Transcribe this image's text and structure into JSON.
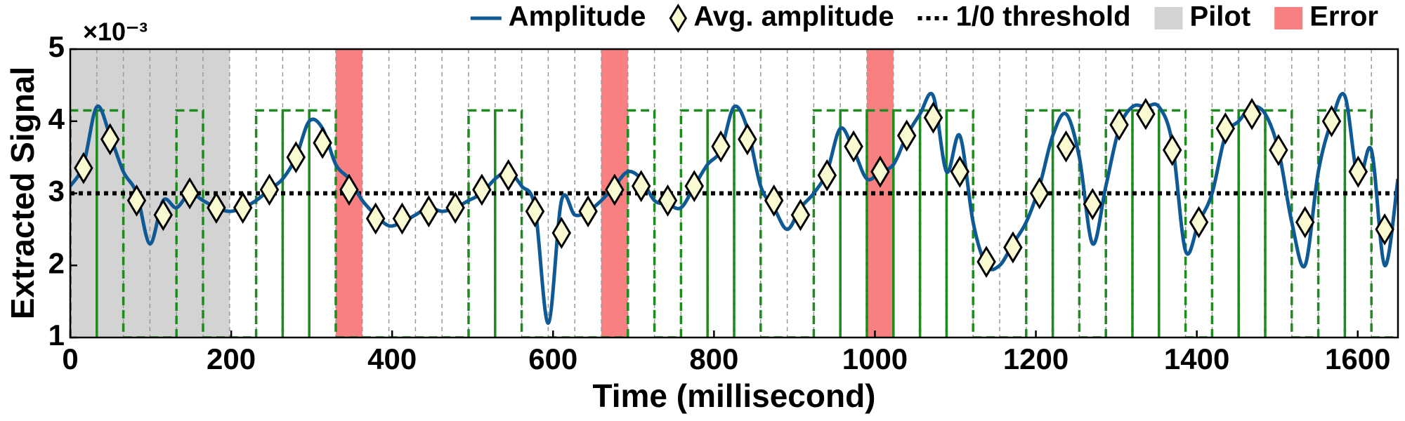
{
  "chart_data": {
    "type": "line",
    "y_label": "Extracted Signal",
    "x_label": "Time (millisecond)",
    "y_scale_label": "×10⁻³",
    "xlim": [
      0,
      1650
    ],
    "ylim": [
      1,
      5
    ],
    "xticks": [
      0,
      200,
      400,
      600,
      800,
      1000,
      1200,
      1400,
      1600
    ],
    "yticks": [
      1,
      2,
      3,
      4,
      5
    ],
    "legend": "upper right",
    "series": [
      {
        "name": "Amplitude",
        "color": "#0f5a94",
        "x": [
          0,
          16.5,
          33,
          49.5,
          66,
          82.5,
          99,
          115.5,
          132,
          148.5,
          165,
          181.5,
          198,
          214.5,
          231,
          247.5,
          264,
          280.5,
          297,
          313.5,
          330,
          346.5,
          363,
          379.5,
          396,
          412.5,
          429,
          445.5,
          462,
          478.5,
          495,
          511.5,
          528,
          544.5,
          561,
          577.5,
          594,
          610.5,
          627,
          643.5,
          660,
          676.5,
          693,
          709.5,
          726,
          742.5,
          759,
          775.5,
          792,
          808.5,
          825,
          841.5,
          858,
          874.5,
          891,
          907.5,
          924,
          940.5,
          957,
          973.5,
          990,
          1006.5,
          1023,
          1039.5,
          1056,
          1072.5,
          1089,
          1105.5,
          1122,
          1138.5,
          1155,
          1171.5,
          1188,
          1204.5,
          1221,
          1237.5,
          1254,
          1270.5,
          1287,
          1303.5,
          1320,
          1336.5,
          1353,
          1369.5,
          1386,
          1402.5,
          1419,
          1435.5,
          1452,
          1468.5,
          1485,
          1501.5,
          1518,
          1534.5,
          1551,
          1567.5,
          1584,
          1600.5,
          1617,
          1633.5,
          1650
        ],
        "values": [
          3.1,
          3.4,
          4.2,
          3.8,
          3.3,
          3.0,
          2.3,
          2.9,
          2.8,
          3.0,
          2.9,
          2.8,
          2.75,
          2.8,
          2.9,
          3.05,
          3.2,
          3.5,
          4.0,
          3.9,
          3.4,
          3.2,
          2.9,
          2.7,
          2.55,
          2.6,
          2.7,
          2.8,
          2.75,
          2.8,
          2.9,
          3.0,
          3.2,
          3.3,
          3.1,
          2.8,
          1.2,
          2.9,
          2.7,
          2.75,
          2.9,
          3.1,
          3.3,
          3.2,
          2.9,
          2.85,
          2.8,
          3.1,
          3.4,
          3.6,
          4.2,
          3.9,
          3.1,
          2.8,
          2.5,
          2.8,
          3.0,
          3.3,
          3.9,
          3.6,
          3.2,
          3.3,
          3.4,
          3.8,
          4.1,
          4.35,
          3.3,
          3.8,
          2.6,
          2.0,
          2.0,
          2.3,
          2.6,
          3.1,
          3.8,
          4.1,
          3.5,
          2.3,
          3.1,
          3.9,
          4.2,
          4.2,
          4.2,
          3.7,
          2.2,
          2.6,
          3.0,
          3.8,
          4.0,
          4.2,
          4.1,
          3.6,
          2.6,
          2.0,
          3.3,
          4.0,
          4.35,
          3.2,
          3.6,
          2.0,
          3.2
        ]
      },
      {
        "name": "Avg. amplitude",
        "color": "#fafad2",
        "x": [
          16.5,
          49.5,
          82.5,
          115.5,
          148.5,
          181.5,
          214.5,
          247.5,
          280.5,
          313.5,
          346.5,
          379.5,
          412.5,
          445.5,
          478.5,
          511.5,
          544.5,
          577.5,
          610.5,
          643.5,
          676.5,
          709.5,
          742.5,
          775.5,
          808.5,
          841.5,
          874.5,
          907.5,
          940.5,
          973.5,
          1006.5,
          1039.5,
          1072.5,
          1105.5,
          1138.5,
          1171.5,
          1204.5,
          1237.5,
          1270.5,
          1303.5,
          1336.5,
          1369.5,
          1402.5,
          1435.5,
          1468.5,
          1501.5,
          1534.5,
          1567.5,
          1600.5,
          1633.5
        ],
        "values": [
          3.35,
          3.75,
          2.9,
          2.7,
          3.0,
          2.8,
          2.8,
          3.05,
          3.5,
          3.7,
          3.05,
          2.65,
          2.65,
          2.75,
          2.8,
          3.05,
          3.25,
          2.75,
          2.45,
          2.75,
          3.05,
          3.1,
          2.9,
          3.1,
          3.65,
          3.75,
          2.9,
          2.7,
          3.25,
          3.65,
          3.3,
          3.8,
          4.05,
          3.3,
          2.05,
          2.25,
          3.0,
          3.65,
          2.85,
          3.95,
          4.1,
          3.6,
          2.6,
          3.9,
          4.1,
          3.6,
          2.6,
          4.0,
          3.3,
          2.5
        ]
      }
    ],
    "threshold": {
      "name": "1/0 threshold",
      "value": 3,
      "color": "#000000"
    },
    "spans": [
      {
        "name": "Pilot",
        "color": "#d3d3d3",
        "ranges": [
          [
            0,
            198
          ]
        ]
      },
      {
        "name": "Error",
        "color": "#f88080",
        "ranges": [
          [
            330,
            363
          ],
          [
            660,
            693
          ],
          [
            990,
            1023
          ]
        ]
      }
    ],
    "decoded": {
      "color": "#1f8a1f",
      "bins": [
        0,
        33,
        66,
        99,
        132,
        165,
        198,
        231,
        264,
        297,
        330,
        363,
        396,
        429,
        462,
        495,
        528,
        561,
        594,
        627,
        660,
        693,
        726,
        759,
        792,
        825,
        858,
        891,
        924,
        957,
        990,
        1023,
        1056,
        1089,
        1122,
        1155,
        1188,
        1221,
        1254,
        1287,
        1320,
        1353,
        1386,
        1419,
        1452,
        1485,
        1518,
        1551,
        1584,
        1617,
        1650
      ],
      "values": [
        4.15,
        4.15,
        1,
        1,
        4.15,
        1,
        1,
        4.15,
        4.15,
        4.15,
        1,
        1,
        1,
        1,
        1,
        4.15,
        4.15,
        1,
        1,
        1,
        1,
        4.15,
        1,
        4.15,
        4.15,
        4.15,
        1,
        1,
        4.15,
        4.15,
        4.15,
        4.15,
        4.15,
        4.15,
        1,
        1,
        4.15,
        4.15,
        1,
        4.15,
        4.15,
        4.15,
        1,
        4.15,
        4.15,
        4.15,
        1,
        4.15,
        4.15,
        1
      ]
    }
  }
}
